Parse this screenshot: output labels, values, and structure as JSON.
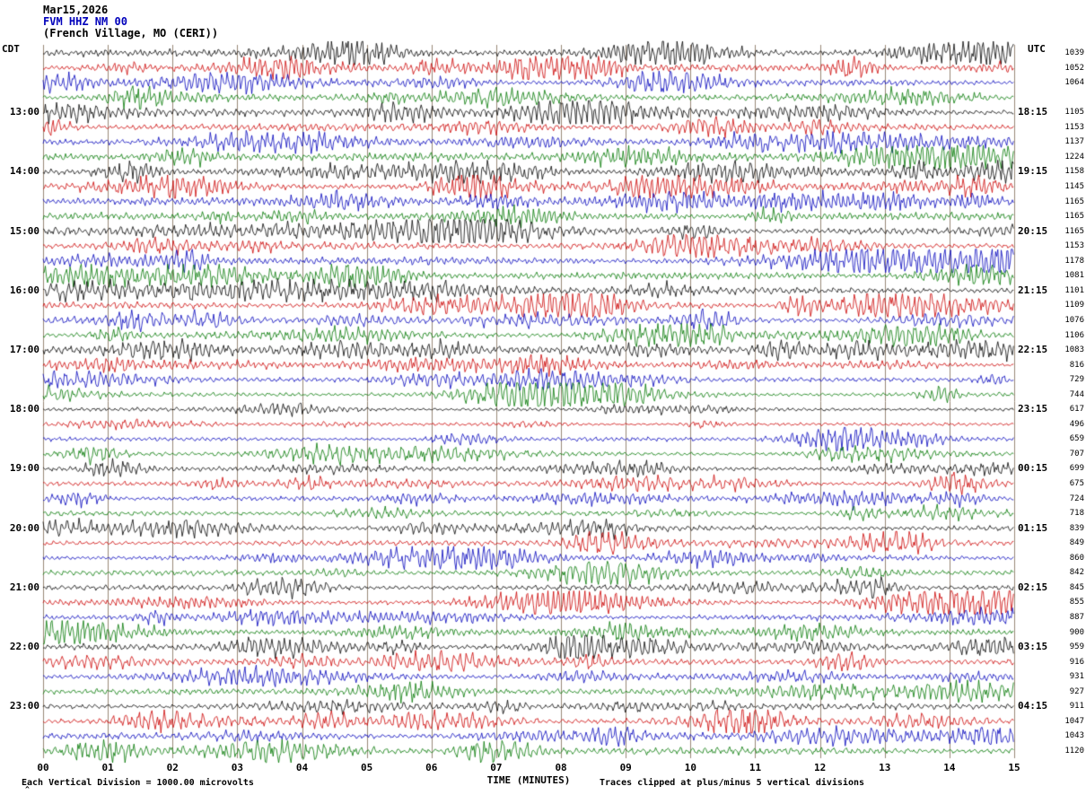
{
  "header": {
    "date": "Mar15,2026",
    "station": "FVM HHZ NM 00",
    "location": "(French Village, MO (CERI))",
    "left_tz": "CDT",
    "right_tz": "UTC"
  },
  "footer": {
    "scale_note": "Each Vertical Division = 1000.00 microvolts",
    "clip_note": "Traces clipped at plus/minus 5 vertical divisions"
  },
  "chart_data": {
    "type": "line",
    "subtype": "helicorder-seismogram",
    "title": "FVM HHZ NM 00 (French Village, MO (CERI)) Mar15,2026",
    "xlabel": "TIME (MINUTES)",
    "x_ticks": [
      "00",
      "01",
      "02",
      "03",
      "04",
      "05",
      "06",
      "07",
      "08",
      "09",
      "10",
      "11",
      "12",
      "13",
      "14",
      "15"
    ],
    "x_range_minutes": [
      0,
      15
    ],
    "minutes_per_row": 15,
    "left_axis": "CDT",
    "right_axis": "UTC",
    "vertical_division_microvolts": 1000.0,
    "clip_divisions": 5,
    "grid_color": "#998877",
    "trace_color_cycle": [
      "#000000",
      "#cc0000",
      "#0000bb",
      "#007700"
    ],
    "rows": [
      {
        "cdt": "",
        "utc": "",
        "val": "1039"
      },
      {
        "cdt": "",
        "utc": "",
        "val": "1052"
      },
      {
        "cdt": "",
        "utc": "",
        "val": "1064"
      },
      {
        "cdt": "",
        "utc": "",
        "val": ""
      },
      {
        "cdt": "13:00",
        "utc": "18:15",
        "val": "1105"
      },
      {
        "cdt": "",
        "utc": "",
        "val": "1153"
      },
      {
        "cdt": "",
        "utc": "",
        "val": "1137"
      },
      {
        "cdt": "",
        "utc": "",
        "val": "1224"
      },
      {
        "cdt": "14:00",
        "utc": "19:15",
        "val": "1158"
      },
      {
        "cdt": "",
        "utc": "",
        "val": "1145"
      },
      {
        "cdt": "",
        "utc": "",
        "val": "1165"
      },
      {
        "cdt": "",
        "utc": "",
        "val": "1165"
      },
      {
        "cdt": "15:00",
        "utc": "20:15",
        "val": "1165"
      },
      {
        "cdt": "",
        "utc": "",
        "val": "1153"
      },
      {
        "cdt": "",
        "utc": "",
        "val": "1178"
      },
      {
        "cdt": "",
        "utc": "",
        "val": "1081"
      },
      {
        "cdt": "16:00",
        "utc": "21:15",
        "val": "1101"
      },
      {
        "cdt": "",
        "utc": "",
        "val": "1109"
      },
      {
        "cdt": "",
        "utc": "",
        "val": "1076"
      },
      {
        "cdt": "",
        "utc": "",
        "val": "1106"
      },
      {
        "cdt": "17:00",
        "utc": "22:15",
        "val": "1083"
      },
      {
        "cdt": "",
        "utc": "",
        "val": "816"
      },
      {
        "cdt": "",
        "utc": "",
        "val": "729"
      },
      {
        "cdt": "",
        "utc": "",
        "val": "744"
      },
      {
        "cdt": "18:00",
        "utc": "23:15",
        "val": "617"
      },
      {
        "cdt": "",
        "utc": "",
        "val": "496"
      },
      {
        "cdt": "",
        "utc": "",
        "val": "659"
      },
      {
        "cdt": "",
        "utc": "",
        "val": "707"
      },
      {
        "cdt": "19:00",
        "utc": "00:15",
        "val": "699"
      },
      {
        "cdt": "",
        "utc": "",
        "val": "675"
      },
      {
        "cdt": "",
        "utc": "",
        "val": "724"
      },
      {
        "cdt": "",
        "utc": "",
        "val": "718"
      },
      {
        "cdt": "20:00",
        "utc": "01:15",
        "val": "839"
      },
      {
        "cdt": "",
        "utc": "",
        "val": "849"
      },
      {
        "cdt": "",
        "utc": "",
        "val": "860"
      },
      {
        "cdt": "",
        "utc": "",
        "val": "842"
      },
      {
        "cdt": "21:00",
        "utc": "02:15",
        "val": "845"
      },
      {
        "cdt": "",
        "utc": "",
        "val": "855"
      },
      {
        "cdt": "",
        "utc": "",
        "val": "887"
      },
      {
        "cdt": "",
        "utc": "",
        "val": "900"
      },
      {
        "cdt": "22:00",
        "utc": "03:15",
        "val": "959"
      },
      {
        "cdt": "",
        "utc": "",
        "val": "916"
      },
      {
        "cdt": "",
        "utc": "",
        "val": "931"
      },
      {
        "cdt": "",
        "utc": "",
        "val": "927"
      },
      {
        "cdt": "23:00",
        "utc": "04:15",
        "val": "911"
      },
      {
        "cdt": "",
        "utc": "",
        "val": "1047"
      },
      {
        "cdt": "",
        "utc": "",
        "val": "1043"
      },
      {
        "cdt": "",
        "utc": "",
        "val": "1120"
      }
    ]
  }
}
